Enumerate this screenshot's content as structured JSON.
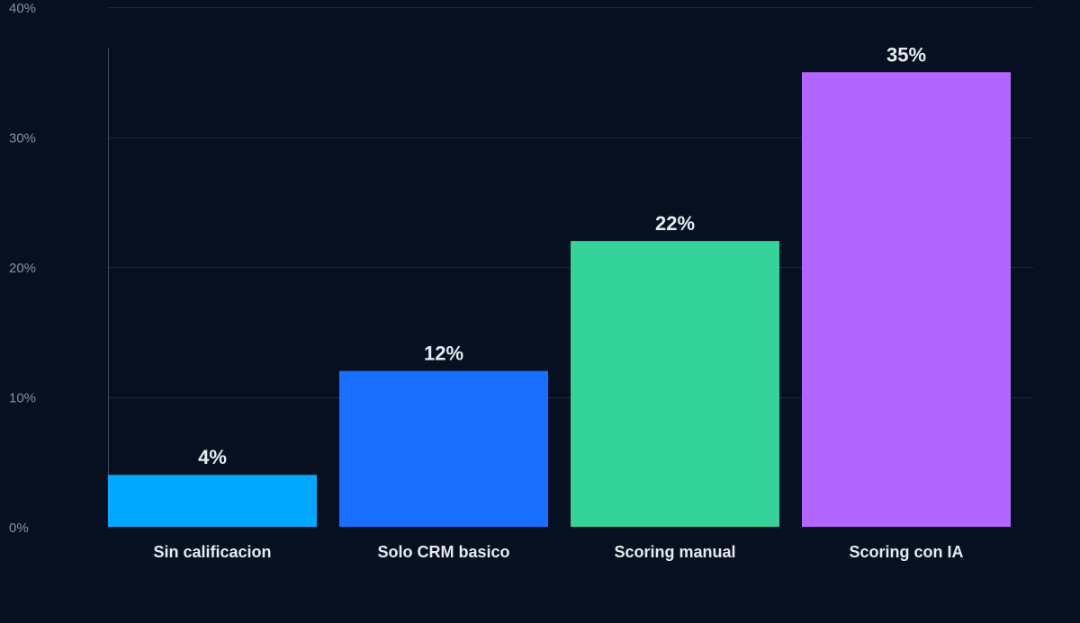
{
  "chart_data": {
    "type": "bar",
    "title": "",
    "xlabel": "",
    "ylabel": "",
    "categories": [
      "Sin calificacion",
      "Solo CRM basico",
      "Scoring manual",
      "Scoring con IA"
    ],
    "values": [
      4,
      12,
      22,
      35
    ],
    "value_labels": [
      "4%",
      "12%",
      "22%",
      "35%"
    ],
    "colors": [
      "#00a8ff",
      "#1a6fff",
      "#34d399",
      "#b266ff"
    ],
    "ylim": [
      0,
      40
    ],
    "yticks": [
      0,
      10,
      20,
      30,
      40
    ],
    "ytick_labels": [
      "0%",
      "10%",
      "20%",
      "30%",
      "40%"
    ],
    "grid": true,
    "legend": "none"
  }
}
